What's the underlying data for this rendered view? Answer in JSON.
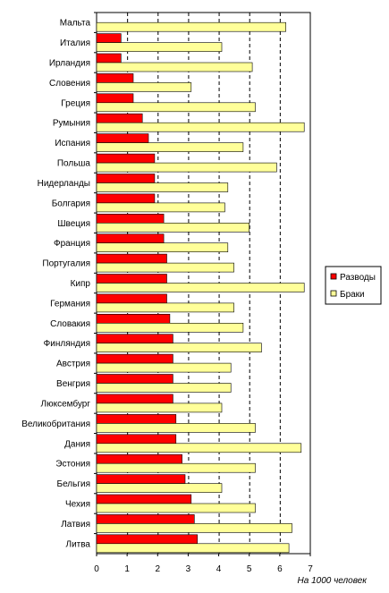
{
  "chart_data": {
    "type": "bar",
    "orientation": "horizontal",
    "categories": [
      "Мальта",
      "Италия",
      "Ирландия",
      "Словения",
      "Греция",
      "Румыния",
      "Испания",
      "Польша",
      "Нидерланды",
      "Болгария",
      "Швеция",
      "Франция",
      "Португалия",
      "Кипр",
      "Германия",
      "Словакия",
      "Финляндия",
      "Австрия",
      "Венгрия",
      "Люксембург",
      "Великобритания",
      "Дания",
      "Эстония",
      "Бельгия",
      "Чехия",
      "Латвия",
      "Литва"
    ],
    "series": [
      {
        "name": "Разводы",
        "color": "#ff0000",
        "values": [
          0,
          0.8,
          0.8,
          1.2,
          1.2,
          1.5,
          1.7,
          1.9,
          1.9,
          1.9,
          2.2,
          2.2,
          2.3,
          2.3,
          2.3,
          2.4,
          2.5,
          2.5,
          2.5,
          2.5,
          2.6,
          2.6,
          2.8,
          2.9,
          3.1,
          3.2,
          3.3
        ]
      },
      {
        "name": "Браки",
        "color": "#ffff99",
        "values": [
          6.2,
          4.1,
          5.1,
          3.1,
          5.2,
          6.8,
          4.8,
          5.9,
          4.3,
          4.2,
          5.0,
          4.3,
          4.5,
          6.8,
          4.5,
          4.8,
          5.4,
          4.4,
          4.4,
          4.1,
          5.2,
          6.7,
          5.2,
          4.1,
          5.2,
          6.4,
          6.3
        ]
      }
    ],
    "xlim": [
      0,
      7
    ],
    "xticks": [
      "0",
      "1",
      "2",
      "3",
      "4",
      "5",
      "6",
      "7"
    ],
    "xlabel": "На 1000 человек",
    "grid": "vertical dashed",
    "legend": "right"
  }
}
